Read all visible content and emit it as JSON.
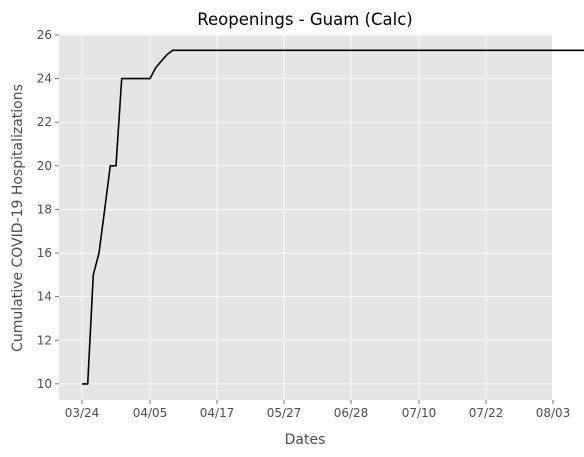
{
  "chart_data": {
    "type": "line",
    "title": "Reopenings - Guam (Calc)",
    "xlabel": "Dates",
    "ylabel": "Cumulative COVID-19 Hospitalizations",
    "x_ticks": [
      "03/24",
      "04/05",
      "04/17",
      "05/27",
      "06/28",
      "07/10",
      "07/22",
      "08/03"
    ],
    "y_ticks": [
      10,
      12,
      14,
      16,
      18,
      20,
      22,
      24,
      26
    ],
    "ylim": [
      9.26,
      26
    ],
    "grid": true,
    "legend": "none",
    "colors": {
      "background": "#e5e5e5",
      "grid": "#ffffff",
      "line": "#000000"
    },
    "series": [
      {
        "x": [
          "03/24",
          "03/25",
          "03/26",
          "03/27",
          "03/28",
          "03/29",
          "03/30",
          "03/31",
          "04/01",
          "04/02",
          "04/03",
          "04/04",
          "04/05",
          "04/06",
          "04/07",
          "04/08",
          "04/09",
          "04/10",
          "07/29"
        ],
        "values": [
          10,
          10,
          15,
          16,
          18,
          20,
          20,
          24,
          24,
          24,
          24,
          24,
          24,
          24.5,
          24.8,
          25.1,
          25.3,
          25.3,
          25.3
        ]
      }
    ]
  }
}
